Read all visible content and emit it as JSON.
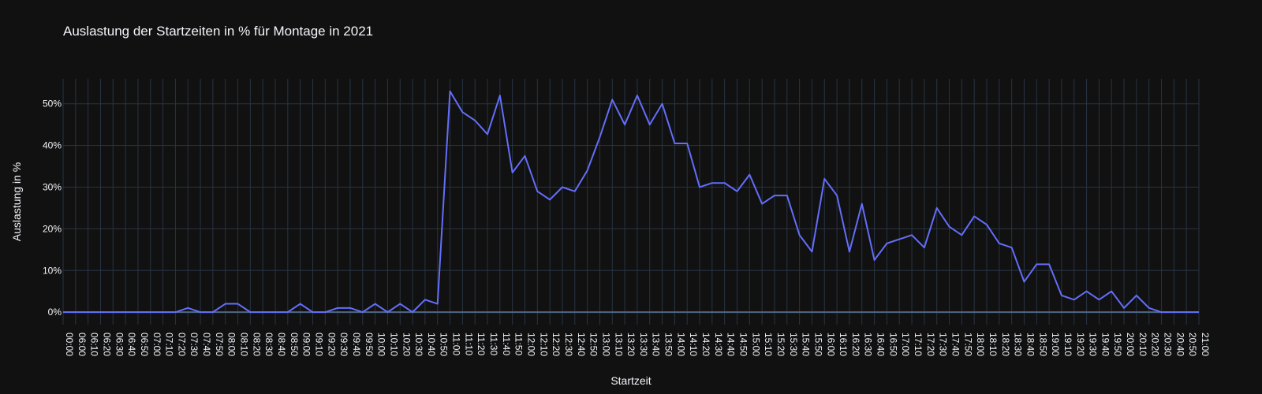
{
  "chart_data": {
    "type": "line",
    "title": "Auslastung der Startzeiten in % für Montage in 2021",
    "xlabel": "Startzeit",
    "ylabel": "Auslastung in %",
    "ylim": [
      -3,
      56
    ],
    "y_ticks": [
      "0%",
      "10%",
      "20%",
      "30%",
      "40%",
      "50%"
    ],
    "grid": true,
    "categories": [
      "00:00",
      "06:00",
      "06:10",
      "06:20",
      "06:30",
      "06:40",
      "06:50",
      "07:00",
      "07:10",
      "07:20",
      "07:30",
      "07:40",
      "07:50",
      "08:00",
      "08:10",
      "08:20",
      "08:30",
      "08:40",
      "08:50",
      "09:00",
      "09:10",
      "09:20",
      "09:30",
      "09:40",
      "09:50",
      "10:00",
      "10:10",
      "10:20",
      "10:30",
      "10:40",
      "10:50",
      "11:00",
      "11:10",
      "11:20",
      "11:30",
      "11:40",
      "11:50",
      "12:00",
      "12:10",
      "12:20",
      "12:30",
      "12:40",
      "12:50",
      "13:00",
      "13:10",
      "13:20",
      "13:30",
      "13:40",
      "13:50",
      "14:00",
      "14:10",
      "14:20",
      "14:30",
      "14:40",
      "14:50",
      "15:00",
      "15:10",
      "15:20",
      "15:30",
      "15:40",
      "15:50",
      "16:00",
      "16:10",
      "16:20",
      "16:30",
      "16:40",
      "16:50",
      "17:00",
      "17:10",
      "17:20",
      "17:30",
      "17:40",
      "17:50",
      "18:00",
      "18:10",
      "18:20",
      "18:30",
      "18:40",
      "18:50",
      "19:00",
      "19:10",
      "19:20",
      "19:30",
      "19:40",
      "19:50",
      "20:00",
      "20:10",
      "20:20",
      "20:30",
      "20:40",
      "20:50",
      "21:00"
    ],
    "series": [
      {
        "color": "#636efa",
        "values": [
          0,
          0,
          0,
          0,
          0,
          0,
          0,
          0,
          0,
          0,
          1,
          0,
          0,
          2,
          2,
          0,
          0,
          0,
          0,
          2,
          0,
          0,
          1,
          1,
          0,
          2,
          0,
          2,
          0,
          3,
          2,
          53,
          48,
          46,
          42.7,
          52,
          33.5,
          37.5,
          29,
          27,
          30,
          29,
          34,
          42,
          51,
          45,
          52,
          45,
          50,
          40.5,
          40.5,
          30,
          31,
          31,
          29,
          33,
          26,
          28,
          28,
          18.5,
          14.5,
          32,
          28,
          14.5,
          26,
          12.5,
          16.5,
          17.5,
          18.5,
          15.5,
          25,
          20.5,
          18.5,
          23,
          21,
          16.5,
          15.5,
          7.3,
          11.5,
          11.5,
          4,
          3,
          5,
          3,
          5,
          1,
          4,
          1,
          0,
          0,
          0,
          0
        ]
      }
    ]
  }
}
